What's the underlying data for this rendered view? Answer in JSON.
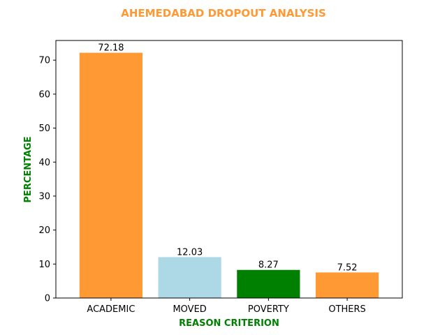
{
  "chart_data": {
    "type": "bar",
    "title": "AHEMEDABAD DROPOUT ANALYSIS",
    "xlabel": "REASON CRITERION",
    "ylabel": "PERCENTAGE",
    "categories": [
      "ACADEMIC",
      "MOVED",
      "POVERTY",
      "OTHERS"
    ],
    "values": [
      72.18,
      12.03,
      8.27,
      7.52
    ],
    "value_labels": [
      "72.18",
      "12.03",
      "8.27",
      "7.52"
    ],
    "bar_colors": [
      "#ff9933",
      "#add8e6",
      "#008000",
      "#ff9933"
    ],
    "title_color": "#ff9933",
    "axis_label_color": "#008000",
    "ylim": [
      0,
      75.79
    ],
    "yticks": [
      0,
      10,
      20,
      30,
      40,
      50,
      60,
      70
    ],
    "ytick_labels": [
      "0",
      "10",
      "20",
      "30",
      "40",
      "50",
      "60",
      "70"
    ],
    "grid": false,
    "legend": "none"
  }
}
